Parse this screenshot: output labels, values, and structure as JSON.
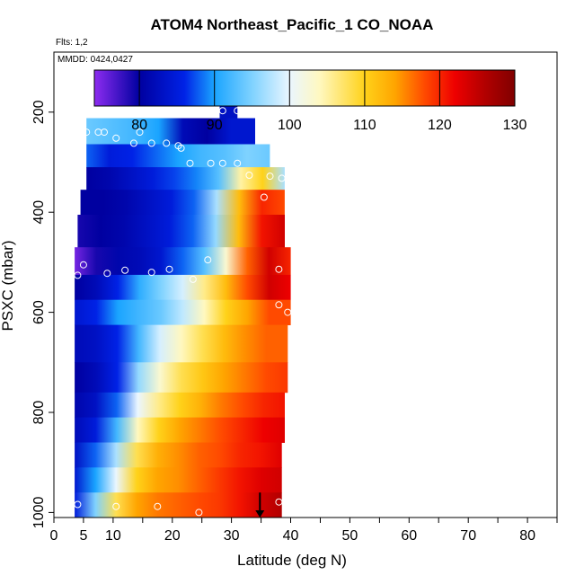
{
  "title": "ATOM4 Northeast_Pacific_1 CO_NOAA",
  "notes": {
    "flights": "Flts: 1,2",
    "dates": "MMDD: 0424,0427"
  },
  "chart_data": {
    "type": "heatmap",
    "title": "ATOM4 Northeast_Pacific_1 CO_NOAA",
    "xlabel": "Latitude (deg N)",
    "ylabel": "PSXC (mbar)",
    "xlim": [
      0,
      85
    ],
    "ylim": [
      1010,
      80
    ],
    "xticks": [
      0,
      5,
      10,
      20,
      30,
      40,
      50,
      60,
      70,
      80
    ],
    "yticks": [
      200,
      400,
      600,
      800,
      1000
    ],
    "colorbar": {
      "range": [
        74,
        130
      ],
      "ticks": [
        80,
        90,
        100,
        110,
        120,
        130
      ],
      "stops": [
        {
          "v": 74,
          "c": "#8d2cf0"
        },
        {
          "v": 80,
          "c": "#0000a0"
        },
        {
          "v": 86,
          "c": "#0022e6"
        },
        {
          "v": 90,
          "c": "#1aa4ff"
        },
        {
          "v": 95,
          "c": "#7fd2ff"
        },
        {
          "v": 100,
          "c": "#eaf6ff"
        },
        {
          "v": 104,
          "c": "#fff8c0"
        },
        {
          "v": 110,
          "c": "#ffd21a"
        },
        {
          "v": 114,
          "c": "#ffa500"
        },
        {
          "v": 118,
          "c": "#ff4a00"
        },
        {
          "v": 122,
          "c": "#ee0000"
        },
        {
          "v": 126,
          "c": "#b20000"
        },
        {
          "v": 130,
          "c": "#800000"
        }
      ]
    },
    "bands": [
      {
        "p": [
          177,
          212
        ],
        "lat": [
          28,
          31
        ],
        "values": [
          83,
          83,
          83,
          83
        ]
      },
      {
        "p": [
          212,
          264
        ],
        "lat": [
          5.5,
          34
        ],
        "values": [
          94,
          93,
          92,
          90,
          82,
          80,
          84,
          84
        ]
      },
      {
        "p": [
          264,
          310
        ],
        "lat": [
          5.5,
          36.5
        ],
        "values": [
          88,
          85,
          86,
          88,
          90,
          92,
          93,
          95,
          94
        ]
      },
      {
        "p": [
          310,
          355
        ],
        "lat": [
          5.5,
          39
        ],
        "values": [
          80,
          81,
          83,
          85,
          87,
          89,
          93,
          105,
          110,
          97
        ]
      },
      {
        "p": [
          355,
          405
        ],
        "lat": [
          4.5,
          39
        ],
        "values": [
          80,
          80,
          81,
          83,
          85,
          88,
          97,
          112,
          120,
          118
        ]
      },
      {
        "p": [
          405,
          470
        ],
        "lat": [
          4,
          39
        ],
        "values": [
          79,
          80,
          81,
          83,
          85,
          88,
          96,
          112,
          121,
          124
        ]
      },
      {
        "p": [
          470,
          525
        ],
        "lat": [
          3.5,
          40
        ],
        "values": [
          75,
          79,
          81,
          82,
          84,
          88,
          93,
          103,
          117,
          124,
          120
        ]
      },
      {
        "p": [
          525,
          575
        ],
        "lat": [
          3.5,
          40
        ],
        "values": [
          80,
          82,
          86,
          91,
          95,
          99,
          106,
          112,
          118,
          124,
          122
        ]
      },
      {
        "p": [
          575,
          625
        ],
        "lat": [
          3.5,
          40
        ],
        "values": [
          84,
          86,
          90,
          92,
          94,
          98,
          104,
          110,
          114,
          118,
          118
        ]
      },
      {
        "p": [
          625,
          700
        ],
        "lat": [
          3.5,
          39.5
        ],
        "values": [
          82,
          83,
          86,
          92,
          99,
          104,
          108,
          112,
          115,
          117,
          117
        ]
      },
      {
        "p": [
          700,
          760
        ],
        "lat": [
          3.5,
          39.5
        ],
        "values": [
          80,
          82,
          86,
          96,
          103,
          108,
          111,
          114,
          116,
          118,
          119
        ]
      },
      {
        "p": [
          760,
          810
        ],
        "lat": [
          3.5,
          39
        ],
        "values": [
          81,
          83,
          88,
          100,
          106,
          110,
          113,
          116,
          118,
          120,
          121
        ]
      },
      {
        "p": [
          810,
          860
        ],
        "lat": [
          3.5,
          39
        ],
        "values": [
          82,
          85,
          92,
          104,
          110,
          114,
          116,
          118,
          120,
          122,
          123
        ]
      },
      {
        "p": [
          860,
          910
        ],
        "lat": [
          3.5,
          38.5
        ],
        "values": [
          83,
          88,
          97,
          108,
          113,
          115,
          117,
          118,
          120,
          121,
          123
        ]
      },
      {
        "p": [
          910,
          960
        ],
        "lat": [
          3.5,
          38.5
        ],
        "values": [
          84,
          90,
          100,
          110,
          114,
          115,
          117,
          119,
          121,
          123,
          124
        ]
      },
      {
        "p": [
          960,
          1010
        ],
        "lat": [
          3.5,
          38.5
        ],
        "values": [
          85,
          95,
          108,
          114,
          116,
          117,
          118,
          119,
          121,
          124,
          126
        ]
      }
    ],
    "points": [
      {
        "x": 28.5,
        "y": 197
      },
      {
        "x": 31,
        "y": 197
      },
      {
        "x": 5.5,
        "y": 240
      },
      {
        "x": 7.5,
        "y": 240
      },
      {
        "x": 8.5,
        "y": 240
      },
      {
        "x": 14.5,
        "y": 240
      },
      {
        "x": 10.5,
        "y": 252
      },
      {
        "x": 13.5,
        "y": 262
      },
      {
        "x": 16.5,
        "y": 262
      },
      {
        "x": 19,
        "y": 262
      },
      {
        "x": 21,
        "y": 267
      },
      {
        "x": 21.5,
        "y": 272
      },
      {
        "x": 23,
        "y": 302
      },
      {
        "x": 26.5,
        "y": 302
      },
      {
        "x": 28.5,
        "y": 302
      },
      {
        "x": 31,
        "y": 302
      },
      {
        "x": 33,
        "y": 326
      },
      {
        "x": 36.5,
        "y": 328
      },
      {
        "x": 38.5,
        "y": 332
      },
      {
        "x": 35.5,
        "y": 370
      },
      {
        "x": 26,
        "y": 495
      },
      {
        "x": 5,
        "y": 505
      },
      {
        "x": 4,
        "y": 526
      },
      {
        "x": 9,
        "y": 522
      },
      {
        "x": 12,
        "y": 516
      },
      {
        "x": 16.5,
        "y": 520
      },
      {
        "x": 19.5,
        "y": 514
      },
      {
        "x": 23.5,
        "y": 534
      },
      {
        "x": 38,
        "y": 514
      },
      {
        "x": 38,
        "y": 585
      },
      {
        "x": 39.5,
        "y": 600
      },
      {
        "x": 4,
        "y": 984
      },
      {
        "x": 10.5,
        "y": 988
      },
      {
        "x": 17.5,
        "y": 988
      },
      {
        "x": 24.5,
        "y": 1000
      },
      {
        "x": 38,
        "y": 979
      }
    ],
    "arrow": {
      "x": 34.8,
      "y_from": 960,
      "y_to": 1010
    }
  }
}
